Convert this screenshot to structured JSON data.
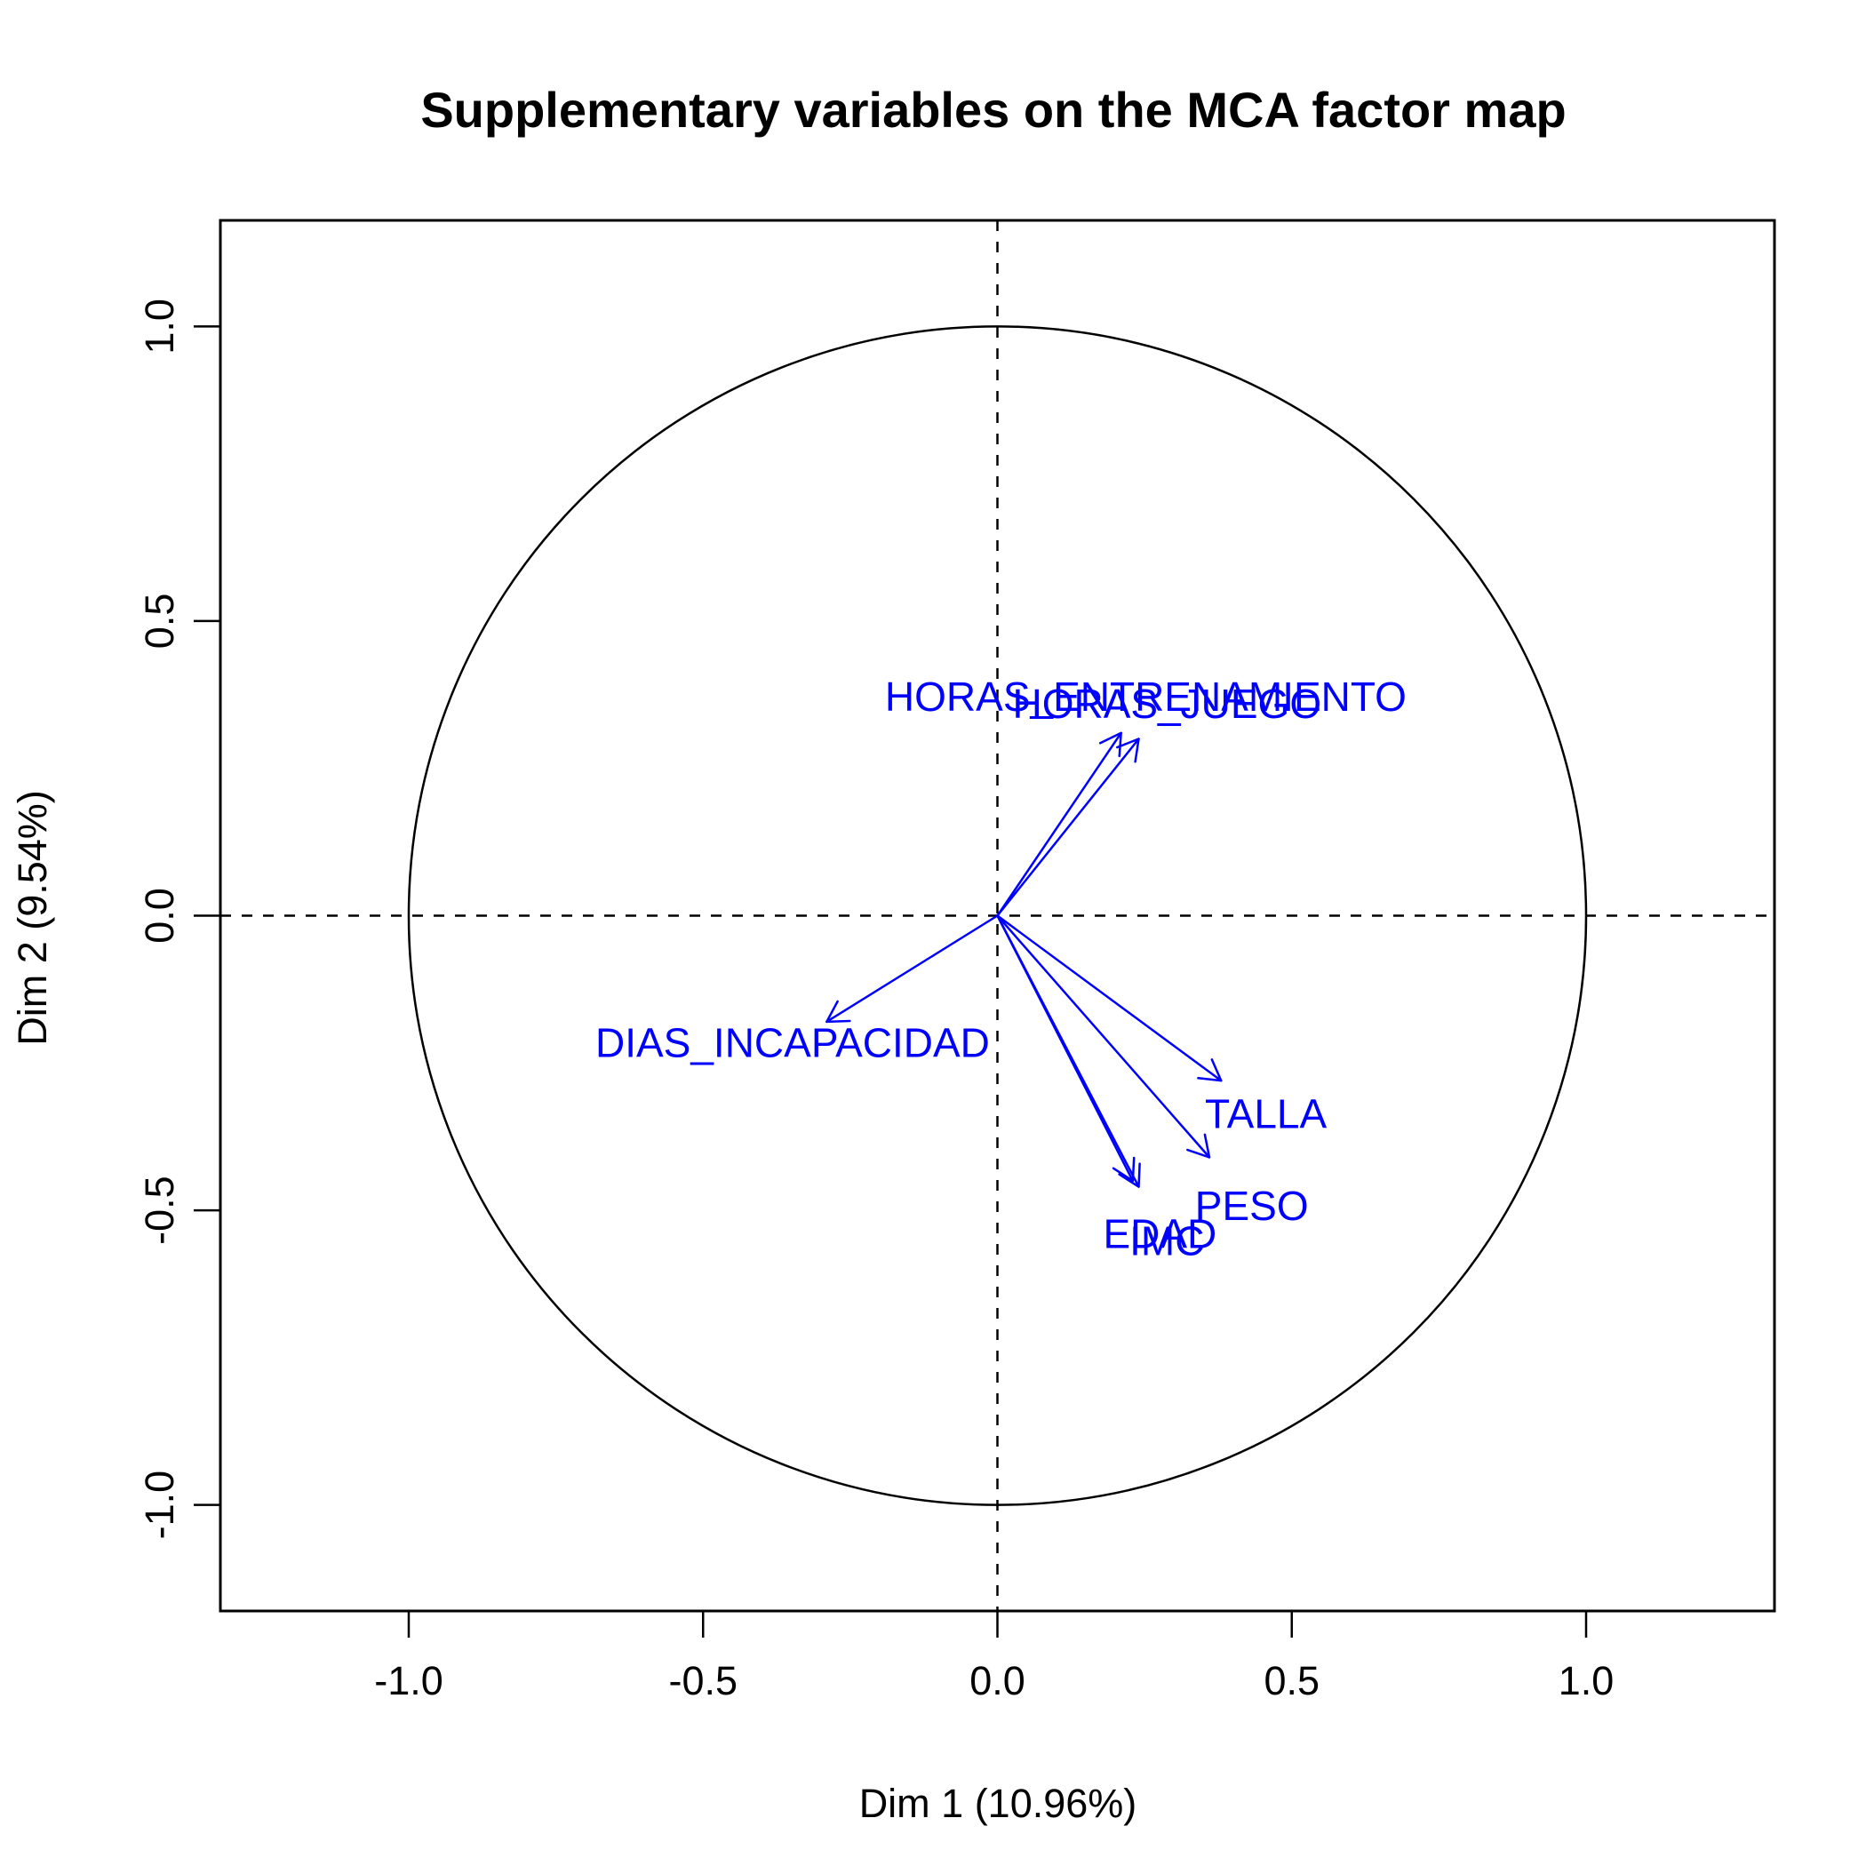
{
  "chart_data": {
    "type": "scatter",
    "title": "Supplementary variables on the MCA factor map",
    "xlabel": "Dim 1 (10.96%)",
    "ylabel": "Dim 2 (9.54%)",
    "xlim": [
      -1.32,
      1.32
    ],
    "ylim": [
      -1.18,
      1.18
    ],
    "x_ticks": [
      "-1.0",
      "-0.5",
      "0.0",
      "0.5",
      "1.0"
    ],
    "x_tick_values": [
      -1.0,
      -0.5,
      0.0,
      0.5,
      1.0
    ],
    "y_ticks": [
      "-1.0",
      "-0.5",
      "0.0",
      "0.5",
      "1.0"
    ],
    "y_tick_values": [
      -1.0,
      -0.5,
      0.0,
      0.5,
      1.0
    ],
    "unit_circle": true,
    "reference_lines": "dashed at x=0 and y=0",
    "color": "#0000FF",
    "arrows": [
      {
        "label": "HORAS_ENTRENAMIENTO",
        "x": 0.21,
        "y": 0.31
      },
      {
        "label": "HORAS_JUEGO",
        "x": 0.24,
        "y": 0.3
      },
      {
        "label": "DIAS_INCAPACIDAD",
        "x": -0.29,
        "y": -0.18
      },
      {
        "label": "TALLA",
        "x": 0.38,
        "y": -0.28
      },
      {
        "label": "PESO",
        "x": 0.36,
        "y": -0.41
      },
      {
        "label": "EDAD",
        "x": 0.23,
        "y": -0.45
      },
      {
        "label": "IMC",
        "x": 0.24,
        "y": -0.46
      }
    ]
  }
}
